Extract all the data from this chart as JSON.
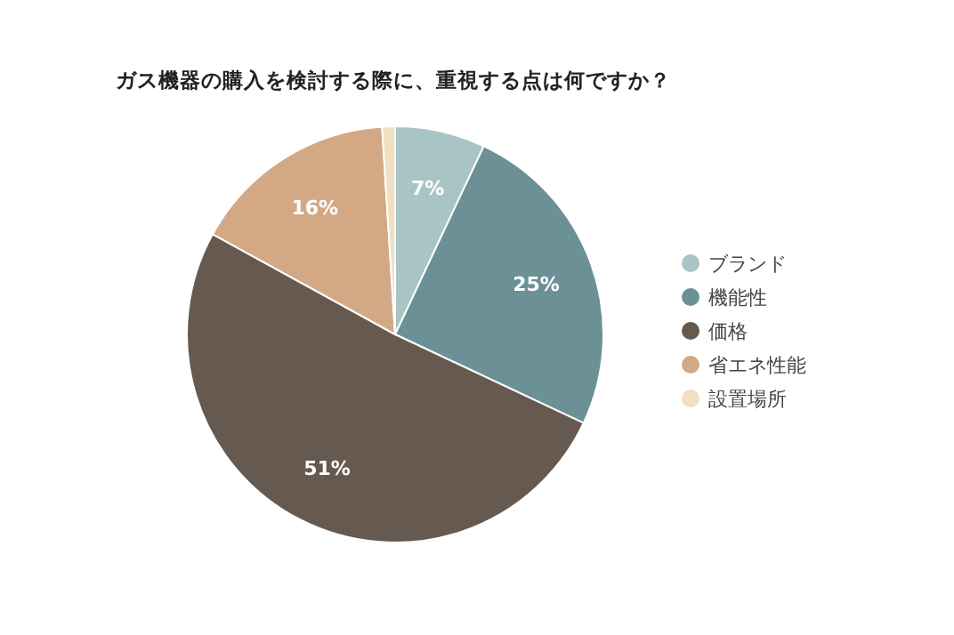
{
  "chart_data": {
    "type": "pie",
    "title": "ガス機器の購入を検討する際に、重視する点は何ですか？",
    "categories": [
      "ブランド",
      "機能性",
      "価格",
      "省エネ性能",
      "設置場所"
    ],
    "values": [
      7,
      25,
      51,
      16,
      1
    ],
    "colors": [
      "#a9c4c4",
      "#6b9196",
      "#66594f",
      "#d3a985",
      "#f0dfc0"
    ],
    "value_labels": [
      "7%",
      "25%",
      "51%",
      "16%",
      null
    ],
    "legend": "right"
  }
}
